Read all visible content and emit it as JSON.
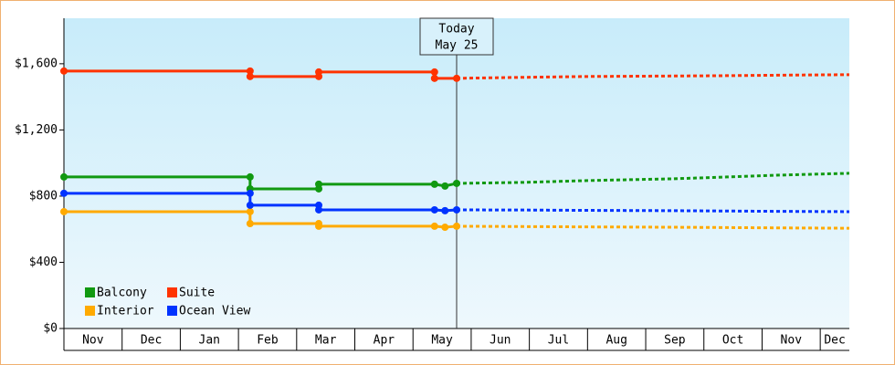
{
  "chart_data": {
    "type": "line",
    "xlim": [
      0,
      13.5
    ],
    "xticks": [
      0,
      1,
      2,
      3,
      4,
      5,
      6,
      7,
      8,
      9,
      10,
      11,
      12,
      13
    ],
    "months": [
      "Nov",
      "Dec",
      "Jan",
      "Feb",
      "Mar",
      "Apr",
      "May",
      "Jun",
      "Jul",
      "Aug",
      "Sep",
      "Oct",
      "Nov",
      "Dec"
    ],
    "ylim": [
      0,
      1875
    ],
    "yticks": [
      {
        "value": 0,
        "label": "$0"
      },
      {
        "value": 400,
        "label": "$400"
      },
      {
        "value": 800,
        "label": "$800"
      },
      {
        "value": 1200,
        "label": "$1,200"
      },
      {
        "value": 1600,
        "label": "$1,600"
      }
    ],
    "annotation": {
      "lines": [
        "Today",
        "May 25"
      ],
      "x": 6.75
    },
    "forecast_x": [
      6.75,
      7.9,
      9,
      10.5,
      11.4,
      12.3,
      13.5
    ],
    "series": [
      {
        "name": "Balcony",
        "color": "#119911",
        "x": [
          0,
          3.2,
          3.2,
          4.38,
          4.38,
          6.37,
          6.55,
          6.75
        ],
        "values": [
          916,
          916,
          844,
          844,
          872,
          872,
          861,
          877
        ],
        "forecast": [
          877,
          883,
          894,
          905,
          916,
          927,
          938
        ]
      },
      {
        "name": "Suite",
        "color": "#ff3300",
        "x": [
          0,
          3.2,
          3.2,
          4.38,
          4.38,
          6.37,
          6.37,
          6.75
        ],
        "values": [
          1556,
          1556,
          1523,
          1523,
          1550,
          1550,
          1512,
          1512
        ],
        "forecast": [
          1512,
          1518,
          1523,
          1526,
          1528,
          1531,
          1534
        ]
      },
      {
        "name": "Interior",
        "color": "#ffaa00",
        "x": [
          0,
          3.2,
          3.2,
          4.38,
          4.38,
          6.37,
          6.55,
          6.75
        ],
        "values": [
          706,
          706,
          634,
          634,
          618,
          618,
          612,
          618
        ],
        "forecast": [
          618,
          616,
          614,
          612,
          610,
          608,
          606
        ]
      },
      {
        "name": "Ocean View",
        "color": "#0033ff",
        "x": [
          0,
          3.2,
          3.2,
          4.38,
          4.38,
          6.37,
          6.55,
          6.75
        ],
        "values": [
          817,
          817,
          745,
          745,
          717,
          717,
          712,
          717
        ],
        "forecast": [
          717,
          716,
          714,
          712,
          710,
          708,
          706
        ]
      }
    ]
  }
}
